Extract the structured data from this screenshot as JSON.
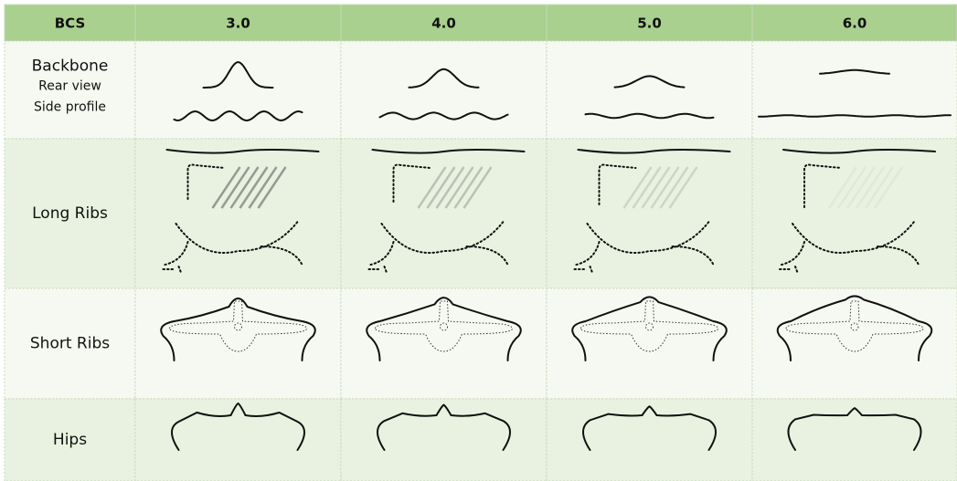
{
  "table": {
    "header": [
      "BCS",
      "3.0",
      "4.0",
      "5.0",
      "6.0"
    ],
    "rows": [
      {
        "label": "Backbone",
        "sublabels": [
          "Rear view",
          "Side profile"
        ]
      },
      {
        "label": "Long Ribs"
      },
      {
        "label": "Short Ribs"
      },
      {
        "label": "Hips"
      }
    ]
  }
}
